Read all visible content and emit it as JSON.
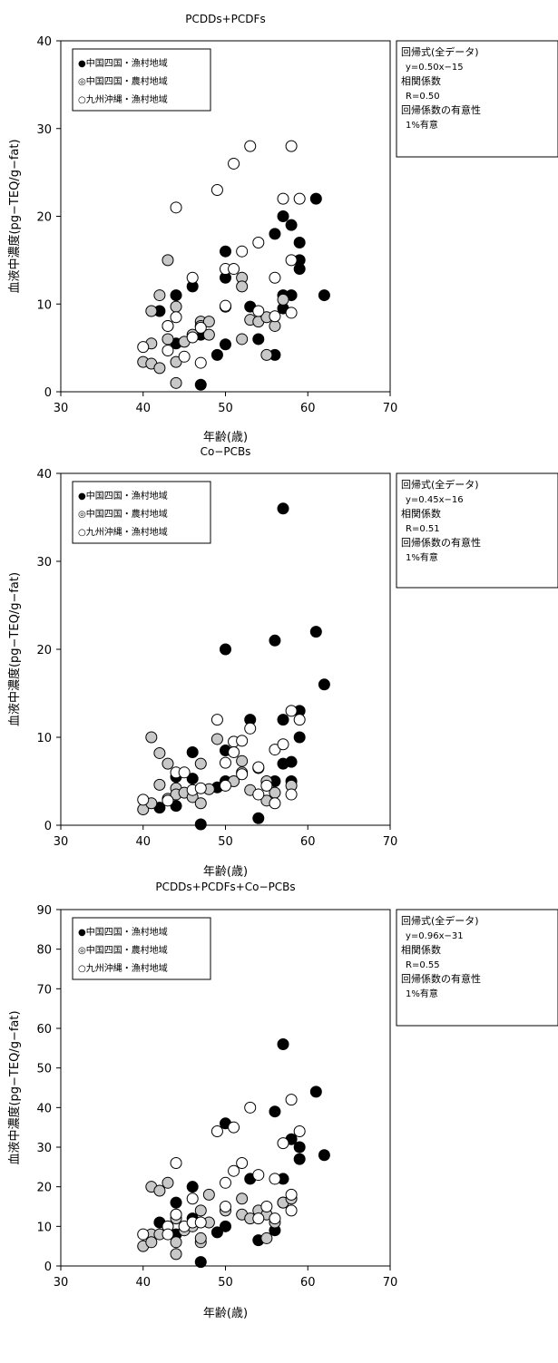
{
  "chart_data": [
    {
      "type": "scatter",
      "title": "PCDDs+PCDFs",
      "xlabel": "年齢(歳)",
      "ylabel": "血液中濃度(pg−TEQ/g−fat)",
      "xlim": [
        30,
        70
      ],
      "ylim": [
        0,
        40
      ],
      "xticks": [
        30,
        40,
        50,
        60,
        70
      ],
      "yticks": [
        0,
        10,
        20,
        30,
        40
      ],
      "legend_placement": "top-left",
      "info_box": {
        "lines": [
          "回帰式(全データ)",
          "y=0.50x−15",
          "相関係数",
          "R=0.50",
          "回帰係数の有意性",
          "1%有意"
        ]
      },
      "series": [
        {
          "name": "●中国四国・漁村地域",
          "fill": "#000000",
          "points": [
            [
              42,
              9.2
            ],
            [
              44,
              11
            ],
            [
              44,
              5.5
            ],
            [
              46,
              12
            ],
            [
              47,
              0.8
            ],
            [
              47,
              6.5
            ],
            [
              49,
              4.2
            ],
            [
              50,
              16
            ],
            [
              50,
              13
            ],
            [
              50,
              5.4
            ],
            [
              53,
              9.7
            ],
            [
              54,
              6
            ],
            [
              56,
              18
            ],
            [
              56,
              4.2
            ],
            [
              57,
              20
            ],
            [
              57,
              11
            ],
            [
              57,
              9.5
            ],
            [
              58,
              19
            ],
            [
              58,
              11
            ],
            [
              59,
              17
            ],
            [
              59,
              15
            ],
            [
              59,
              14
            ],
            [
              61,
              22
            ],
            [
              62,
              11
            ]
          ]
        },
        {
          "name": "◎中国四国・農村地域",
          "fill": "#c8c8c8",
          "points": [
            [
              40,
              3.4
            ],
            [
              41,
              9.2
            ],
            [
              41,
              5.5
            ],
            [
              41,
              3.2
            ],
            [
              42,
              11
            ],
            [
              42,
              2.7
            ],
            [
              43,
              15
            ],
            [
              43,
              7.5
            ],
            [
              43,
              6
            ],
            [
              44,
              9.7
            ],
            [
              44,
              1
            ],
            [
              44,
              3.4
            ],
            [
              45,
              5.7
            ],
            [
              46,
              6.5
            ],
            [
              47,
              8
            ],
            [
              47,
              7.5
            ],
            [
              48,
              8
            ],
            [
              48,
              6.5
            ],
            [
              50,
              9.7
            ],
            [
              50,
              9.7
            ],
            [
              52,
              13
            ],
            [
              52,
              12
            ],
            [
              52,
              6
            ],
            [
              53,
              8.2
            ],
            [
              54,
              8
            ],
            [
              55,
              8.5
            ],
            [
              55,
              4.2
            ],
            [
              56,
              7.5
            ],
            [
              57,
              10.5
            ]
          ]
        },
        {
          "name": "○九州沖縄・漁村地域",
          "fill": "#ffffff",
          "points": [
            [
              40,
              5.1
            ],
            [
              43,
              7.5
            ],
            [
              43,
              4.7
            ],
            [
              44,
              21
            ],
            [
              44,
              8.5
            ],
            [
              45,
              4
            ],
            [
              46,
              13
            ],
            [
              46,
              6.2
            ],
            [
              47,
              7.3
            ],
            [
              47,
              3.3
            ],
            [
              49,
              23
            ],
            [
              50,
              14
            ],
            [
              50,
              9.8
            ],
            [
              51,
              26
            ],
            [
              51,
              14
            ],
            [
              52,
              16
            ],
            [
              53,
              28
            ],
            [
              54,
              17
            ],
            [
              54,
              9.2
            ],
            [
              56,
              13
            ],
            [
              56,
              8.6
            ],
            [
              57,
              22
            ],
            [
              58,
              28
            ],
            [
              58,
              15
            ],
            [
              58,
              9
            ],
            [
              59,
              22
            ]
          ]
        }
      ]
    },
    {
      "type": "scatter",
      "title": "Co−PCBs",
      "xlabel": "年齢(歳)",
      "ylabel": "血液中濃度(pg−TEQ/g−fat)",
      "xlim": [
        30,
        70
      ],
      "ylim": [
        0,
        40
      ],
      "xticks": [
        30,
        40,
        50,
        60,
        70
      ],
      "yticks": [
        0,
        10,
        20,
        30,
        40
      ],
      "legend_placement": "top-left",
      "info_box": {
        "lines": [
          "回帰式(全データ)",
          "y=0.45x−16",
          "相関係数",
          "R=0.51",
          "回帰係数の有意性",
          "1%有意"
        ]
      },
      "series": [
        {
          "name": "●中国四国・漁村地域",
          "fill": "#000000",
          "points": [
            [
              42,
              2
            ],
            [
              44,
              5.5
            ],
            [
              44,
              2.2
            ],
            [
              46,
              8.3
            ],
            [
              46,
              5.3
            ],
            [
              47,
              0.1
            ],
            [
              49,
              4.3
            ],
            [
              50,
              20
            ],
            [
              50,
              8.5
            ],
            [
              50,
              5
            ],
            [
              53,
              12
            ],
            [
              54,
              0.8
            ],
            [
              56,
              21
            ],
            [
              56,
              5
            ],
            [
              57,
              36
            ],
            [
              57,
              12
            ],
            [
              57,
              7
            ],
            [
              58,
              7.2
            ],
            [
              58,
              5
            ],
            [
              59,
              13
            ],
            [
              59,
              10
            ],
            [
              61,
              22
            ],
            [
              62,
              16
            ]
          ]
        },
        {
          "name": "◎中国四国・農村地域",
          "fill": "#c8c8c8",
          "points": [
            [
              40,
              1.8
            ],
            [
              41,
              10
            ],
            [
              41,
              2.5
            ],
            [
              42,
              8.2
            ],
            [
              42,
              4.6
            ],
            [
              43,
              7
            ],
            [
              43,
              3
            ],
            [
              44,
              4.2
            ],
            [
              44,
              3.5
            ],
            [
              45,
              3.7
            ],
            [
              46,
              3.2
            ],
            [
              47,
              7
            ],
            [
              47,
              2.5
            ],
            [
              48,
              4.1
            ],
            [
              49,
              9.8
            ],
            [
              51,
              5
            ],
            [
              52,
              7.3
            ],
            [
              52,
              6
            ],
            [
              53,
              4
            ],
            [
              54,
              6.5
            ],
            [
              55,
              5
            ],
            [
              55,
              2.8
            ],
            [
              56,
              3.7
            ],
            [
              58,
              4.5
            ]
          ]
        },
        {
          "name": "○九州沖縄・漁村地域",
          "fill": "#ffffff",
          "points": [
            [
              40,
              2.9
            ],
            [
              43,
              2.8
            ],
            [
              44,
              6
            ],
            [
              45,
              6
            ],
            [
              46,
              4
            ],
            [
              47,
              4.2
            ],
            [
              49,
              12
            ],
            [
              50,
              7.1
            ],
            [
              50,
              4.5
            ],
            [
              51,
              9.5
            ],
            [
              51,
              8.3
            ],
            [
              52,
              9.6
            ],
            [
              52,
              5.8
            ],
            [
              53,
              11
            ],
            [
              54,
              6.6
            ],
            [
              54,
              3.5
            ],
            [
              55,
              4.5
            ],
            [
              56,
              8.6
            ],
            [
              56,
              2.5
            ],
            [
              57,
              9.2
            ],
            [
              58,
              13
            ],
            [
              58,
              3.5
            ],
            [
              59,
              12
            ]
          ]
        }
      ]
    },
    {
      "type": "scatter",
      "title": "PCDDs+PCDFs+Co−PCBs",
      "xlabel": "年齢(歳)",
      "ylabel": "血液中濃度(pg−TEQ/g−fat)",
      "xlim": [
        30,
        70
      ],
      "ylim": [
        0,
        90
      ],
      "xticks": [
        30,
        40,
        50,
        60,
        70
      ],
      "yticks": [
        0,
        10,
        20,
        30,
        40,
        50,
        60,
        70,
        80,
        90
      ],
      "legend_placement": "top-left",
      "info_box": {
        "lines": [
          "回帰式(全データ)",
          "y=0.96x−31",
          "相関係数",
          "R=0.55",
          "回帰係数の有意性",
          "1%有意"
        ]
      },
      "series": [
        {
          "name": "●中国四国・漁村地域",
          "fill": "#000000",
          "points": [
            [
              42,
              11
            ],
            [
              44,
              16
            ],
            [
              44,
              8
            ],
            [
              46,
              20
            ],
            [
              46,
              12
            ],
            [
              47,
              1
            ],
            [
              49,
              8.5
            ],
            [
              50,
              36
            ],
            [
              50,
              10
            ],
            [
              53,
              22
            ],
            [
              54,
              6.5
            ],
            [
              56,
              39
            ],
            [
              56,
              9
            ],
            [
              57,
              56
            ],
            [
              57,
              22
            ],
            [
              57,
              16
            ],
            [
              58,
              32
            ],
            [
              59,
              30
            ],
            [
              59,
              27
            ],
            [
              61,
              44
            ],
            [
              62,
              28
            ]
          ]
        },
        {
          "name": "◎中国四国・農村地域",
          "fill": "#c8c8c8",
          "points": [
            [
              40,
              5
            ],
            [
              41,
              20
            ],
            [
              41,
              8
            ],
            [
              41,
              6
            ],
            [
              42,
              19
            ],
            [
              42,
              8
            ],
            [
              43,
              21
            ],
            [
              43,
              10
            ],
            [
              44,
              13
            ],
            [
              44,
              12
            ],
            [
              44,
              6
            ],
            [
              44,
              3
            ],
            [
              45,
              9
            ],
            [
              46,
              10
            ],
            [
              47,
              14
            ],
            [
              47,
              6
            ],
            [
              47,
              7
            ],
            [
              48,
              18
            ],
            [
              48,
              11
            ],
            [
              50,
              14
            ],
            [
              52,
              17
            ],
            [
              52,
              13
            ],
            [
              53,
              12
            ],
            [
              54,
              14
            ],
            [
              55,
              13
            ],
            [
              55,
              7
            ],
            [
              56,
              11
            ],
            [
              57,
              16
            ],
            [
              58,
              17
            ]
          ]
        },
        {
          "name": "○九州沖縄・漁村地域",
          "fill": "#ffffff",
          "points": [
            [
              40,
              8
            ],
            [
              43,
              10
            ],
            [
              43,
              8
            ],
            [
              44,
              26
            ],
            [
              44,
              13
            ],
            [
              45,
              10
            ],
            [
              46,
              17
            ],
            [
              46,
              11
            ],
            [
              47,
              11
            ],
            [
              49,
              34
            ],
            [
              50,
              21
            ],
            [
              50,
              15
            ],
            [
              51,
              35
            ],
            [
              51,
              24
            ],
            [
              52,
              26
            ],
            [
              53,
              40
            ],
            [
              54,
              23
            ],
            [
              54,
              12
            ],
            [
              55,
              15
            ],
            [
              56,
              22
            ],
            [
              56,
              12
            ],
            [
              57,
              31
            ],
            [
              58,
              42
            ],
            [
              58,
              18
            ],
            [
              58,
              14
            ],
            [
              59,
              34
            ]
          ]
        }
      ]
    }
  ]
}
